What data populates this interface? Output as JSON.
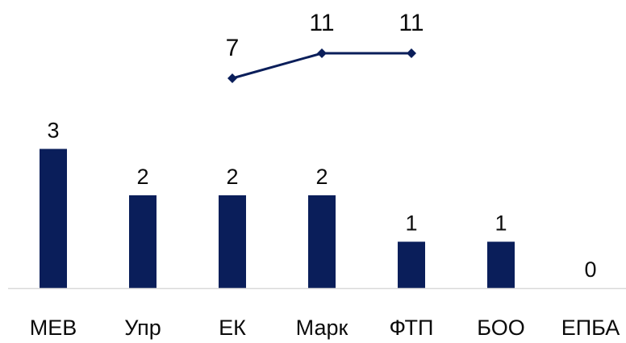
{
  "chart_data": {
    "type": "bar",
    "categories": [
      "МЕВ",
      "Упр",
      "ЕК",
      "Марк",
      "ФТП",
      "БОО",
      "ЕПБА"
    ],
    "series": [
      {
        "type": "bar",
        "values": [
          3,
          2,
          2,
          2,
          1,
          1,
          0
        ]
      },
      {
        "type": "line",
        "values": [
          null,
          null,
          7,
          11,
          11,
          null,
          null
        ]
      }
    ],
    "title": "",
    "xlabel": "",
    "ylabel": "",
    "grid": false,
    "colors": {
      "bar": "#0a1e5a",
      "line": "#0a1e5a",
      "axis": "#d9d9d9",
      "text": "#0b0b0b"
    }
  }
}
